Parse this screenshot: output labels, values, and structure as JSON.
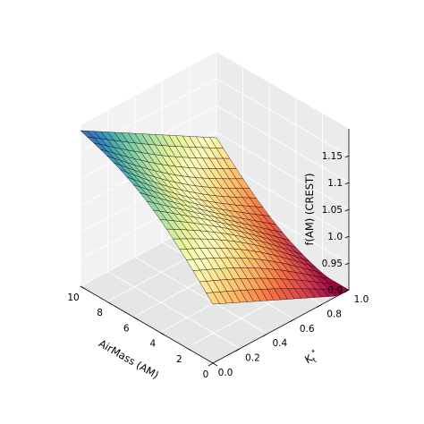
{
  "chart_data": {
    "type": "surface3d",
    "title": "",
    "xlabel": "AirMass (AM)",
    "ylabel": "K_t*",
    "zlabel": "f(AM) (CREST)",
    "xlim": [
      0,
      10
    ],
    "ylim": [
      0,
      1
    ],
    "zlim": [
      0.9,
      1.2
    ],
    "x_ticks": [
      "0",
      "2",
      "4",
      "6",
      "8",
      "10"
    ],
    "y_ticks": [
      "0.0",
      "0.2",
      "0.4",
      "0.6",
      "0.8",
      "1.0"
    ],
    "z_ticks": [
      "0.9",
      "0.95",
      "1.0",
      "1.05",
      "1.1",
      "1.15"
    ],
    "colormap": "Spectral_r",
    "grid": true,
    "surface": {
      "x": [
        0,
        0.5,
        1,
        1.5,
        2,
        2.5,
        3,
        3.5,
        4,
        4.5,
        5,
        5.5,
        6,
        6.5,
        7,
        7.5,
        8,
        8.5,
        9,
        9.5,
        10
      ],
      "y": [
        0,
        0.05,
        0.1,
        0.15,
        0.2,
        0.25,
        0.3,
        0.35,
        0.4,
        0.45,
        0.5,
        0.55,
        0.6,
        0.65,
        0.7,
        0.75,
        0.8,
        0.85,
        0.9,
        0.95,
        1.0
      ],
      "corners": {
        "am0_kt0": 1.01,
        "am0_kt1": 0.89,
        "am10_kt0": 1.19,
        "am10_kt1": 1.04
      }
    }
  }
}
